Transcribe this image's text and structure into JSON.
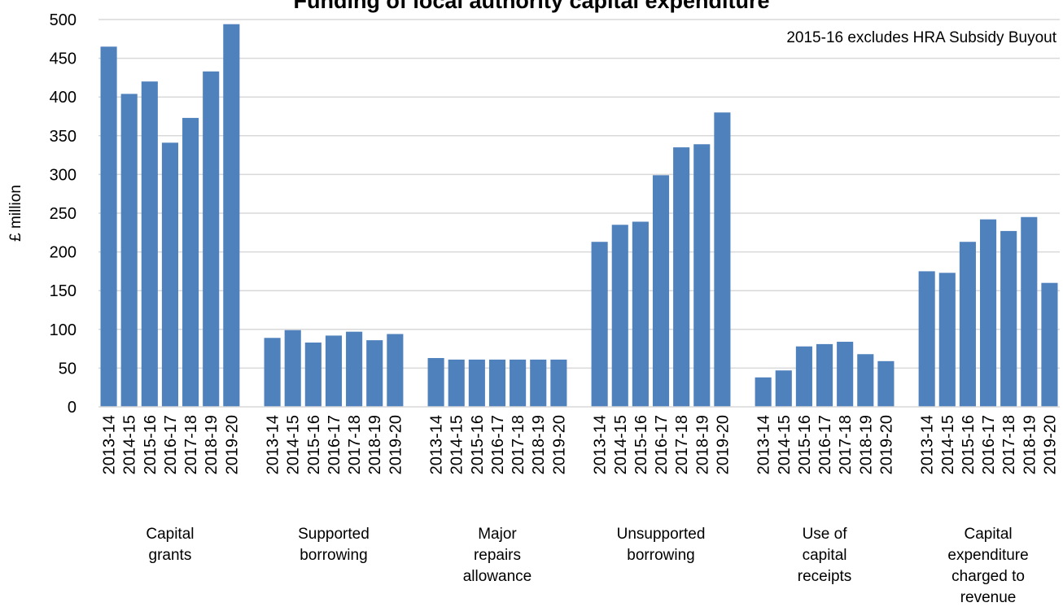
{
  "chart_data": {
    "type": "bar",
    "title": "Funding of local authority capital expenditure",
    "annotation": "2015-16 excludes HRA Subsidy Buyout",
    "ylabel": "£ million",
    "xlabel": "",
    "ylim": [
      0,
      500
    ],
    "yticks": [
      0,
      50,
      100,
      150,
      200,
      250,
      300,
      350,
      400,
      450,
      500
    ],
    "grid": true,
    "bar_color": "#4f81bd",
    "groups": [
      {
        "label": [
          "Capital",
          "grants"
        ],
        "categories": [
          "2013-14",
          "2014-15",
          "2015-16",
          "2016-17",
          "2017-18",
          "2018-19",
          "2019-20"
        ],
        "values": [
          465,
          404,
          420,
          341,
          373,
          433,
          494
        ]
      },
      {
        "label": [
          "Supported",
          "borrowing"
        ],
        "categories": [
          "2013-14",
          "2014-15",
          "2015-16",
          "2016-17",
          "2017-18",
          "2018-19",
          "2019-20"
        ],
        "values": [
          89,
          99,
          83,
          92,
          97,
          86,
          94
        ]
      },
      {
        "label": [
          "Major",
          "repairs",
          "allowance"
        ],
        "categories": [
          "2013-14",
          "2014-15",
          "2015-16",
          "2016-17",
          "2017-18",
          "2018-19",
          "2019-20"
        ],
        "values": [
          63,
          61,
          61,
          61,
          61,
          61,
          61
        ]
      },
      {
        "label": [
          "Unsupported",
          "borrowing"
        ],
        "categories": [
          "2013-14",
          "2014-15",
          "2015-16",
          "2016-17",
          "2017-18",
          "2018-19",
          "2019-20"
        ],
        "values": [
          213,
          235,
          239,
          299,
          335,
          339,
          380
        ]
      },
      {
        "label": [
          "Use of",
          "capital",
          "receipts"
        ],
        "categories": [
          "2013-14",
          "2014-15",
          "2015-16",
          "2016-17",
          "2017-18",
          "2018-19",
          "2019-20"
        ],
        "values": [
          38,
          47,
          78,
          81,
          84,
          68,
          59
        ]
      },
      {
        "label": [
          "Capital",
          "expenditure",
          "charged to",
          "revenue"
        ],
        "categories": [
          "2013-14",
          "2014-15",
          "2015-16",
          "2016-17",
          "2017-18",
          "2018-19",
          "2019-20"
        ],
        "values": [
          175,
          173,
          213,
          242,
          227,
          245,
          160
        ]
      }
    ]
  }
}
